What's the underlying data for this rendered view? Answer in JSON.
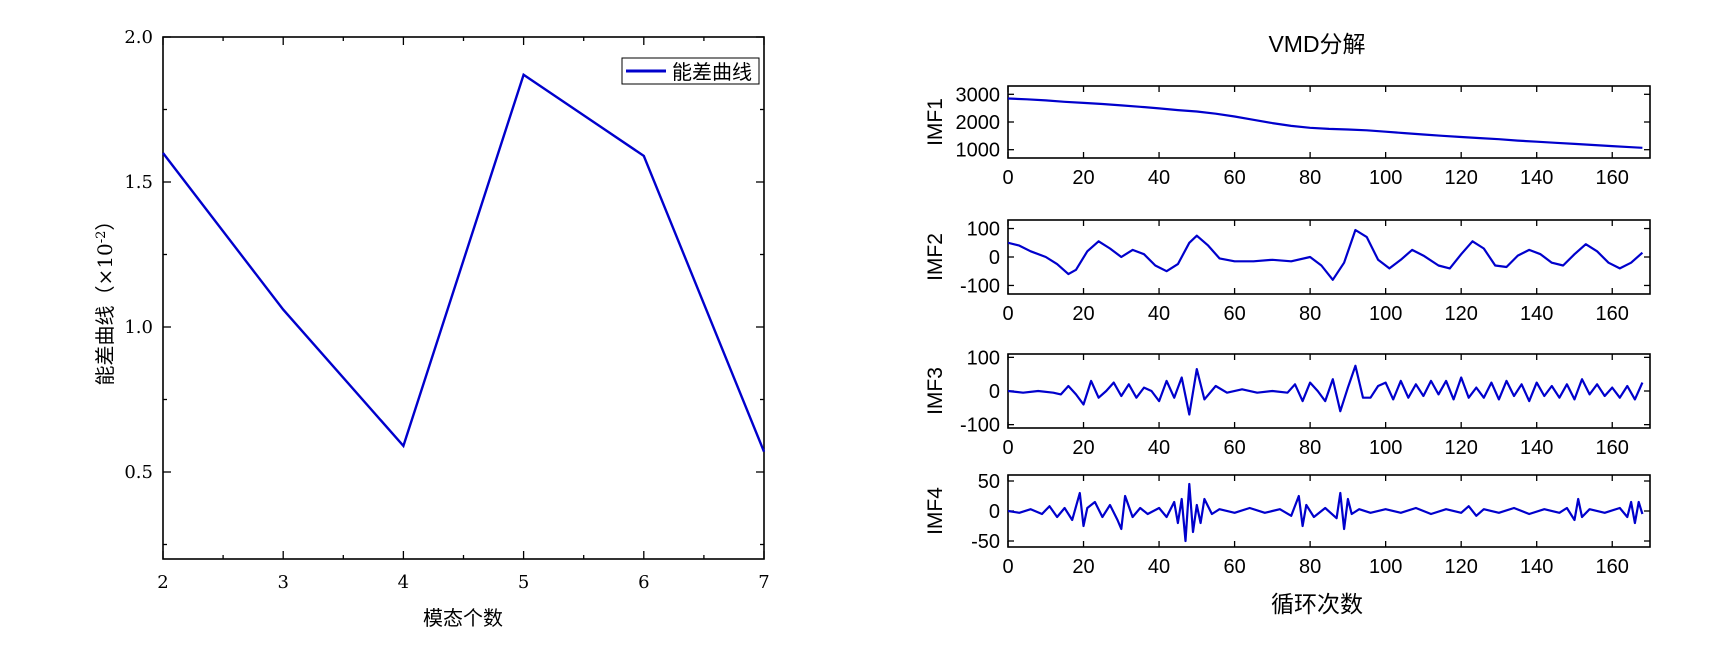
{
  "chart_data": [
    {
      "type": "line",
      "title": "",
      "xlabel": "模态个数",
      "ylabel": "能差曲线（×10",
      "ylabel_exp": "-2",
      "ylabel_close": "）",
      "xlim": [
        2,
        7
      ],
      "ylim": [
        0.2,
        2.0
      ],
      "xticks": [
        2,
        3,
        4,
        5,
        6,
        7
      ],
      "xtick_labels": [
        "2",
        "3",
        "4",
        "5",
        "6",
        "7"
      ],
      "yticks": [
        0.5,
        1.0,
        1.5,
        2.0
      ],
      "ytick_labels": [
        "0.5",
        "1.0",
        "1.5",
        "2.0"
      ],
      "legend_position": "top-right",
      "color": "#0000cc",
      "series": [
        {
          "name": "能差曲线",
          "x": [
            2,
            3,
            4,
            5,
            6,
            7
          ],
          "values": [
            1.6,
            1.06,
            0.59,
            1.87,
            1.59,
            0.57
          ]
        }
      ]
    },
    {
      "type": "line",
      "title": "VMD分解",
      "xlabel": "循环次数",
      "xlim": [
        0,
        170
      ],
      "xticks": [
        0,
        20,
        40,
        60,
        80,
        100,
        120,
        140,
        160
      ],
      "xtick_labels": [
        "0",
        "20",
        "40",
        "60",
        "80",
        "100",
        "120",
        "140",
        "160"
      ],
      "color": "#0000cc",
      "subplots": [
        {
          "ylabel": "IMF1",
          "ylim": [
            700,
            3300
          ],
          "yticks": [
            1000,
            2000,
            3000
          ],
          "ytick_labels": [
            "1000",
            "2000",
            "3000"
          ],
          "x": [
            0,
            5,
            10,
            15,
            20,
            25,
            30,
            35,
            40,
            45,
            50,
            55,
            60,
            65,
            70,
            75,
            80,
            85,
            90,
            95,
            100,
            105,
            110,
            115,
            120,
            125,
            130,
            135,
            140,
            145,
            150,
            155,
            160,
            165,
            168
          ],
          "values": [
            2850,
            2820,
            2780,
            2730,
            2690,
            2650,
            2600,
            2550,
            2490,
            2430,
            2380,
            2300,
            2200,
            2080,
            1960,
            1860,
            1790,
            1750,
            1730,
            1700,
            1650,
            1600,
            1550,
            1500,
            1460,
            1420,
            1380,
            1330,
            1290,
            1250,
            1210,
            1170,
            1130,
            1090,
            1070
          ]
        },
        {
          "ylabel": "IMF2",
          "ylim": [
            -130,
            130
          ],
          "yticks": [
            -100,
            0,
            100
          ],
          "ytick_labels": [
            "-100",
            "0",
            "100"
          ],
          "x": [
            0,
            3,
            6,
            10,
            13,
            16,
            18,
            21,
            24,
            27,
            30,
            33,
            36,
            39,
            42,
            45,
            48,
            50,
            53,
            56,
            60,
            65,
            70,
            75,
            80,
            83,
            86,
            89,
            92,
            95,
            98,
            101,
            104,
            107,
            110,
            114,
            117,
            120,
            123,
            126,
            129,
            132,
            135,
            138,
            141,
            144,
            147,
            150,
            153,
            156,
            159,
            162,
            165,
            168
          ],
          "values": [
            50,
            40,
            20,
            0,
            -25,
            -60,
            -45,
            20,
            55,
            30,
            0,
            25,
            10,
            -30,
            -50,
            -25,
            50,
            75,
            40,
            -5,
            -15,
            -15,
            -10,
            -15,
            0,
            -30,
            -80,
            -20,
            95,
            70,
            -10,
            -40,
            -10,
            25,
            5,
            -30,
            -40,
            10,
            55,
            30,
            -30,
            -35,
            5,
            25,
            10,
            -20,
            -30,
            10,
            45,
            20,
            -20,
            -40,
            -20,
            15
          ]
        },
        {
          "ylabel": "IMF3",
          "ylim": [
            -110,
            110
          ],
          "yticks": [
            -100,
            0,
            100
          ],
          "ytick_labels": [
            "-100",
            "0",
            "100"
          ],
          "x": [
            0,
            4,
            8,
            12,
            14,
            16,
            18,
            20,
            22,
            24,
            26,
            28,
            30,
            32,
            34,
            36,
            38,
            40,
            42,
            44,
            46,
            48,
            50,
            52,
            55,
            58,
            62,
            66,
            70,
            74,
            76,
            78,
            80,
            82,
            84,
            86,
            88,
            90,
            92,
            94,
            96,
            98,
            100,
            102,
            104,
            106,
            108,
            110,
            112,
            114,
            116,
            118,
            120,
            122,
            124,
            126,
            128,
            130,
            132,
            134,
            136,
            138,
            140,
            142,
            144,
            146,
            148,
            150,
            152,
            154,
            156,
            158,
            160,
            162,
            164,
            166,
            168
          ],
          "values": [
            0,
            -5,
            0,
            -5,
            -10,
            15,
            -10,
            -40,
            30,
            -20,
            0,
            25,
            -15,
            20,
            -20,
            10,
            0,
            -30,
            30,
            -20,
            40,
            -70,
            65,
            -25,
            15,
            -5,
            5,
            -5,
            0,
            -5,
            20,
            -30,
            25,
            0,
            -30,
            35,
            -60,
            10,
            75,
            -20,
            -20,
            15,
            25,
            -25,
            30,
            -20,
            20,
            -15,
            30,
            -10,
            30,
            -25,
            40,
            -20,
            10,
            -20,
            25,
            -25,
            30,
            -15,
            20,
            -30,
            25,
            -15,
            15,
            -20,
            20,
            -25,
            35,
            -10,
            20,
            -15,
            10,
            -20,
            15,
            -25,
            25
          ]
        },
        {
          "ylabel": "IMF4",
          "ylim": [
            -60,
            60
          ],
          "yticks": [
            -50,
            0,
            50
          ],
          "ytick_labels": [
            "-50",
            "0",
            "50"
          ],
          "x": [
            0,
            3,
            6,
            9,
            11,
            13,
            15,
            17,
            19,
            20,
            21,
            23,
            25,
            27,
            29,
            30,
            31,
            33,
            35,
            37,
            40,
            42,
            44,
            45,
            46,
            47,
            48,
            49,
            50,
            51,
            52,
            54,
            56,
            60,
            64,
            68,
            72,
            75,
            77,
            78,
            79,
            81,
            84,
            87,
            88,
            89,
            90,
            91,
            93,
            96,
            100,
            104,
            108,
            112,
            116,
            120,
            122,
            124,
            126,
            130,
            134,
            138,
            142,
            146,
            148,
            150,
            151,
            152,
            154,
            158,
            162,
            164,
            165,
            166,
            167,
            168
          ],
          "values": [
            0,
            -3,
            3,
            -5,
            8,
            -10,
            5,
            -15,
            30,
            -25,
            5,
            15,
            -10,
            10,
            -15,
            -30,
            25,
            -10,
            5,
            -5,
            5,
            -10,
            15,
            -20,
            20,
            -50,
            45,
            -35,
            10,
            -20,
            20,
            -5,
            3,
            -3,
            5,
            -3,
            3,
            -8,
            25,
            -25,
            10,
            -10,
            5,
            -12,
            30,
            -30,
            20,
            -5,
            3,
            -3,
            3,
            -3,
            5,
            -5,
            3,
            -3,
            8,
            -8,
            3,
            -3,
            5,
            -5,
            3,
            -3,
            5,
            -15,
            20,
            -10,
            3,
            -3,
            5,
            -10,
            15,
            -20,
            15,
            -5
          ]
        }
      ]
    }
  ]
}
